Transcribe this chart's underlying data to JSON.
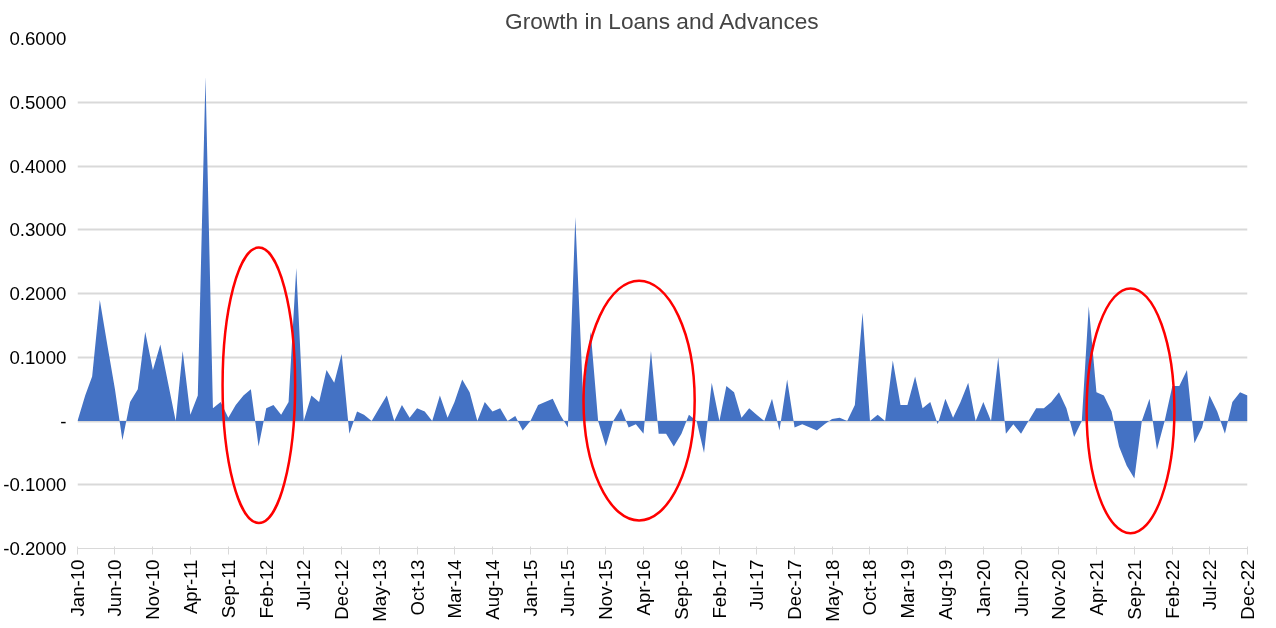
{
  "chart_data": {
    "type": "area",
    "title": "Growth in Loans and Advances",
    "x": [
      "2010-01",
      "2010-02",
      "2010-03",
      "2010-04",
      "2010-05",
      "2010-06",
      "2010-07",
      "2010-08",
      "2010-09",
      "2010-10",
      "2010-11",
      "2010-12",
      "2011-01",
      "2011-02",
      "2011-03",
      "2011-04",
      "2011-05",
      "2011-06",
      "2011-07",
      "2011-08",
      "2011-09",
      "2011-10",
      "2011-11",
      "2011-12",
      "2012-01",
      "2012-02",
      "2012-03",
      "2012-04",
      "2012-05",
      "2012-06",
      "2012-07",
      "2012-08",
      "2012-09",
      "2012-10",
      "2012-11",
      "2012-12",
      "2013-01",
      "2013-02",
      "2013-03",
      "2013-04",
      "2013-05",
      "2013-06",
      "2013-07",
      "2013-08",
      "2013-09",
      "2013-10",
      "2013-11",
      "2013-12",
      "2014-01",
      "2014-02",
      "2014-03",
      "2014-04",
      "2014-05",
      "2014-06",
      "2014-07",
      "2014-08",
      "2014-09",
      "2014-10",
      "2014-11",
      "2014-12",
      "2015-01",
      "2015-02",
      "2015-03",
      "2015-04",
      "2015-05",
      "2015-06",
      "2015-07",
      "2015-08",
      "2015-09",
      "2015-10",
      "2015-11",
      "2015-12",
      "2016-01",
      "2016-02",
      "2016-03",
      "2016-04",
      "2016-05",
      "2016-06",
      "2016-07",
      "2016-08",
      "2016-09",
      "2016-10",
      "2016-11",
      "2016-12",
      "2017-01",
      "2017-02",
      "2017-03",
      "2017-04",
      "2017-05",
      "2017-06",
      "2017-07",
      "2017-08",
      "2017-09",
      "2017-10",
      "2017-11",
      "2017-12",
      "2018-01",
      "2018-02",
      "2018-03",
      "2018-04",
      "2018-05",
      "2018-06",
      "2018-07",
      "2018-08",
      "2018-09",
      "2018-10",
      "2018-11",
      "2018-12",
      "2019-01",
      "2019-02",
      "2019-03",
      "2019-04",
      "2019-05",
      "2019-06",
      "2019-07",
      "2019-08",
      "2019-09",
      "2019-10",
      "2019-11",
      "2019-12",
      "2020-01",
      "2020-02",
      "2020-03",
      "2020-04",
      "2020-05",
      "2020-06",
      "2020-07",
      "2020-08",
      "2020-09",
      "2020-10",
      "2020-11",
      "2020-12",
      "2021-01",
      "2021-02",
      "2021-03",
      "2021-04",
      "2021-05",
      "2021-06",
      "2021-07",
      "2021-08",
      "2021-09",
      "2021-10",
      "2021-11",
      "2021-12",
      "2022-01",
      "2022-02",
      "2022-03",
      "2022-04",
      "2022-05",
      "2022-06",
      "2022-07",
      "2022-08",
      "2022-09",
      "2022-10",
      "2022-11",
      "2022-12"
    ],
    "values": [
      0,
      0.04,
      0.07,
      0.19,
      0.12,
      0.05,
      -0.03,
      0.03,
      0.05,
      0.14,
      0.08,
      0.12,
      0.06,
      0.0,
      0.11,
      0.01,
      0.04,
      0.54,
      0.02,
      0.03,
      0.005,
      0.025,
      0.04,
      0.05,
      -0.04,
      0.02,
      0.025,
      0.01,
      0.03,
      0.24,
      0.0,
      0.04,
      0.03,
      0.08,
      0.06,
      0.105,
      -0.02,
      0.015,
      0.01,
      0.0,
      0.02,
      0.04,
      0.0,
      0.025,
      0.005,
      0.02,
      0.015,
      0.0,
      0.04,
      0.005,
      0.03,
      0.065,
      0.045,
      0.0,
      0.03,
      0.015,
      0.02,
      0.0,
      0.008,
      -0.015,
      0.0,
      0.025,
      0.03,
      0.035,
      0.01,
      -0.01,
      0.32,
      0.04,
      0.14,
      0.0,
      -0.04,
      0.0,
      0.02,
      -0.01,
      -0.005,
      -0.02,
      0.11,
      -0.02,
      -0.02,
      -0.04,
      -0.02,
      0.01,
      0.0,
      -0.05,
      0.06,
      0.0,
      0.055,
      0.045,
      0.005,
      0.02,
      0.01,
      0.0,
      0.035,
      -0.015,
      0.065,
      -0.01,
      -0.005,
      -0.01,
      -0.015,
      -0.005,
      0.003,
      0.005,
      0.0,
      0.025,
      0.17,
      0.0,
      0.01,
      0.0,
      0.095,
      0.025,
      0.025,
      0.07,
      0.02,
      0.03,
      -0.005,
      0.035,
      0.005,
      0.03,
      0.06,
      0.0,
      0.03,
      0.0,
      0.1,
      -0.02,
      -0.005,
      -0.02,
      0.0,
      0.02,
      0.02,
      0.03,
      0.045,
      0.02,
      -0.025,
      0.0,
      0.18,
      0.045,
      0.04,
      0.015,
      -0.04,
      -0.07,
      -0.09,
      0.0,
      0.035,
      -0.045,
      0.0,
      0.055,
      0.055,
      0.08,
      -0.035,
      -0.01,
      0.04,
      0.015,
      -0.02,
      0.03,
      0.045,
      0.04
    ],
    "color": "#4472c4",
    "xlim": [
      "2010-01",
      "2022-12"
    ],
    "xticks": [
      {
        "value": "2010-01",
        "label": "Jan-10"
      },
      {
        "value": "2010-06",
        "label": "Jun-10"
      },
      {
        "value": "2010-11",
        "label": "Nov-10"
      },
      {
        "value": "2011-04",
        "label": "Apr-11"
      },
      {
        "value": "2011-09",
        "label": "Sep-11"
      },
      {
        "value": "2012-02",
        "label": "Feb-12"
      },
      {
        "value": "2012-07",
        "label": "Jul-12"
      },
      {
        "value": "2012-12",
        "label": "Dec-12"
      },
      {
        "value": "2013-05",
        "label": "May-13"
      },
      {
        "value": "2013-10",
        "label": "Oct-13"
      },
      {
        "value": "2014-03",
        "label": "Mar-14"
      },
      {
        "value": "2014-08",
        "label": "Aug-14"
      },
      {
        "value": "2015-01",
        "label": "Jan-15"
      },
      {
        "value": "2015-06",
        "label": "Jun-15"
      },
      {
        "value": "2015-11",
        "label": "Nov-15"
      },
      {
        "value": "2016-04",
        "label": "Apr-16"
      },
      {
        "value": "2016-09",
        "label": "Sep-16"
      },
      {
        "value": "2017-02",
        "label": "Feb-17"
      },
      {
        "value": "2017-07",
        "label": "Jul-17"
      },
      {
        "value": "2017-12",
        "label": "Dec-17"
      },
      {
        "value": "2018-05",
        "label": "May-18"
      },
      {
        "value": "2018-10",
        "label": "Oct-18"
      },
      {
        "value": "2019-03",
        "label": "Mar-19"
      },
      {
        "value": "2019-08",
        "label": "Aug-19"
      },
      {
        "value": "2020-01",
        "label": "Jan-20"
      },
      {
        "value": "2020-06",
        "label": "Jun-20"
      },
      {
        "value": "2020-11",
        "label": "Nov-20"
      },
      {
        "value": "2021-04",
        "label": "Apr-21"
      },
      {
        "value": "2021-09",
        "label": "Sep-21"
      },
      {
        "value": "2022-02",
        "label": "Feb-22"
      },
      {
        "value": "2022-07",
        "label": "Jul-22"
      },
      {
        "value": "2022-12",
        "label": "Dec-22"
      }
    ],
    "ylim": [
      -0.2,
      0.6
    ],
    "yticks": [
      {
        "value": -0.2,
        "label": "-0.2000"
      },
      {
        "value": -0.1,
        "label": "-0.1000"
      },
      {
        "value": 0,
        "label": "-"
      },
      {
        "value": 0.1,
        "label": "0.1000"
      },
      {
        "value": 0.2,
        "label": "0.2000"
      },
      {
        "value": 0.3,
        "label": "0.3000"
      },
      {
        "value": 0.4,
        "label": "0.4000"
      },
      {
        "value": 0.5,
        "label": "0.5000"
      },
      {
        "value": 0.6,
        "label": "0.6000"
      }
    ],
    "grid": "y"
  }
}
